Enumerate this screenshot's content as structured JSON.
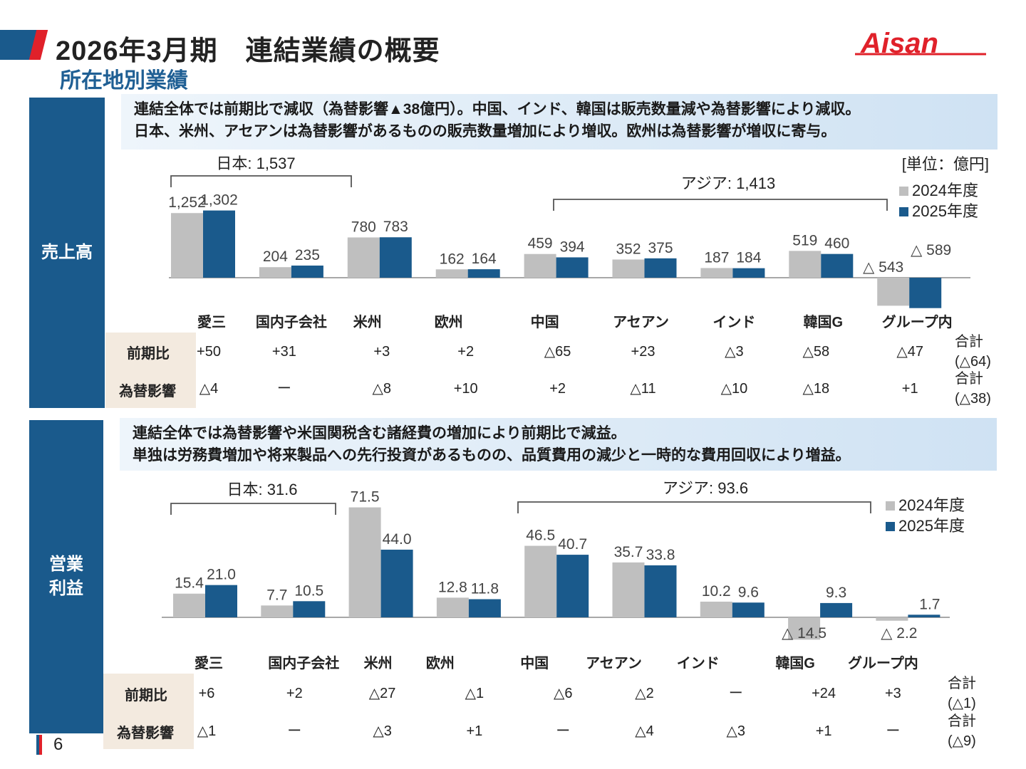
{
  "header": {
    "title": "2026年3月期　連結業績の概要",
    "subtitle": "所在地別業績",
    "logo_text": "Aisan",
    "brand_red": "#e0212a",
    "brand_blue": "#1a5a8c"
  },
  "sales": {
    "side_label": "売上高",
    "note_lines": [
      "連結全体では前期比で減収（為替影響▲38億円）。中国、インド、韓国は販売数量減や為替影響により減収。",
      "日本、米州、アセアンは為替影響があるものの販売数量増加により増収。欧州は為替影響が増収に寄与。"
    ],
    "unit": "[単位：億円]",
    "legend": [
      "2024年度",
      "2025年度"
    ],
    "group_labels": [
      "日本: 1,537",
      "アジア: 1,413"
    ],
    "row_labels": [
      "前期比",
      "為替影響"
    ],
    "yoy": [
      "+50",
      "+31",
      "+3",
      "+2",
      "△65",
      "+23",
      "△3",
      "△58",
      "△47"
    ],
    "fx": [
      "△4",
      "ー",
      "△8",
      "+10",
      "+2",
      "△11",
      "△10",
      "△18",
      "+1"
    ],
    "total_label": "合計",
    "yoy_total": "(△64)",
    "fx_total": "(△38)"
  },
  "op": {
    "side_label_lines": [
      "営業",
      "利益"
    ],
    "note_lines": [
      "連結全体では為替影響や米国関税含む諸経費の増加により前期比で減益。",
      "単独は労務費増加や将来製品への先行投資があるものの、品質費用の減少と一時的な費用回収により増益。"
    ],
    "legend": [
      "2024年度",
      "2025年度"
    ],
    "group_labels": [
      "日本: 31.6",
      "アジア: 93.6"
    ],
    "row_labels": [
      "前期比",
      "為替影響"
    ],
    "yoy": [
      "+6",
      "+2",
      "△27",
      "△1",
      "△6",
      "△2",
      "ー",
      "+24",
      "+3"
    ],
    "fx": [
      "△1",
      "ー",
      "△3",
      "+1",
      "ー",
      "△4",
      "△3",
      "+1",
      "ー"
    ],
    "total_label": "合計",
    "yoy_total": "(△1)",
    "fx_total": "(△9)"
  },
  "chart_data": [
    {
      "type": "bar",
      "categories": [
        "愛三",
        "国内子会社",
        "米州",
        "欧州",
        "中国",
        "アセアン",
        "インド",
        "韓国G",
        "グループ内"
      ],
      "series": [
        {
          "name": "2024年度",
          "values": [
            1252,
            204,
            780,
            162,
            459,
            352,
            187,
            519,
            -543
          ],
          "labels": [
            "1,252",
            "204",
            "780",
            "162",
            "459",
            "352",
            "187",
            "519",
            "△ 543"
          ]
        },
        {
          "name": "2025年度",
          "values": [
            1302,
            235,
            783,
            164,
            394,
            375,
            184,
            460,
            -589
          ],
          "labels": [
            "1,302",
            "235",
            "783",
            "164",
            "394",
            "375",
            "184",
            "460",
            "△ 589"
          ]
        }
      ],
      "colors": [
        "#bfbfbf",
        "#1a5a8c"
      ],
      "legend_position": "top-right",
      "grid": false
    },
    {
      "type": "bar",
      "categories": [
        "愛三",
        "国内子会社",
        "米州",
        "欧州",
        "中国",
        "アセアン",
        "インド",
        "韓国G",
        "グループ内"
      ],
      "series": [
        {
          "name": "2024年度",
          "values": [
            15.4,
            7.7,
            71.5,
            12.8,
            46.5,
            35.7,
            10.2,
            -14.5,
            -2.2
          ],
          "labels": [
            "15.4",
            "7.7",
            "71.5",
            "12.8",
            "46.5",
            "35.7",
            "10.2",
            "△ 14.5",
            "△ 2.2"
          ]
        },
        {
          "name": "2025年度",
          "values": [
            21.0,
            10.5,
            44.0,
            11.8,
            40.7,
            33.8,
            9.6,
            9.3,
            1.7
          ],
          "labels": [
            "21.0",
            "10.5",
            "44.0",
            "11.8",
            "40.7",
            "33.8",
            "9.6",
            "9.3",
            "1.7"
          ]
        }
      ],
      "colors": [
        "#bfbfbf",
        "#1a5a8c"
      ],
      "legend_position": "top-right",
      "grid": false
    }
  ],
  "footer": {
    "page_number": "6"
  }
}
